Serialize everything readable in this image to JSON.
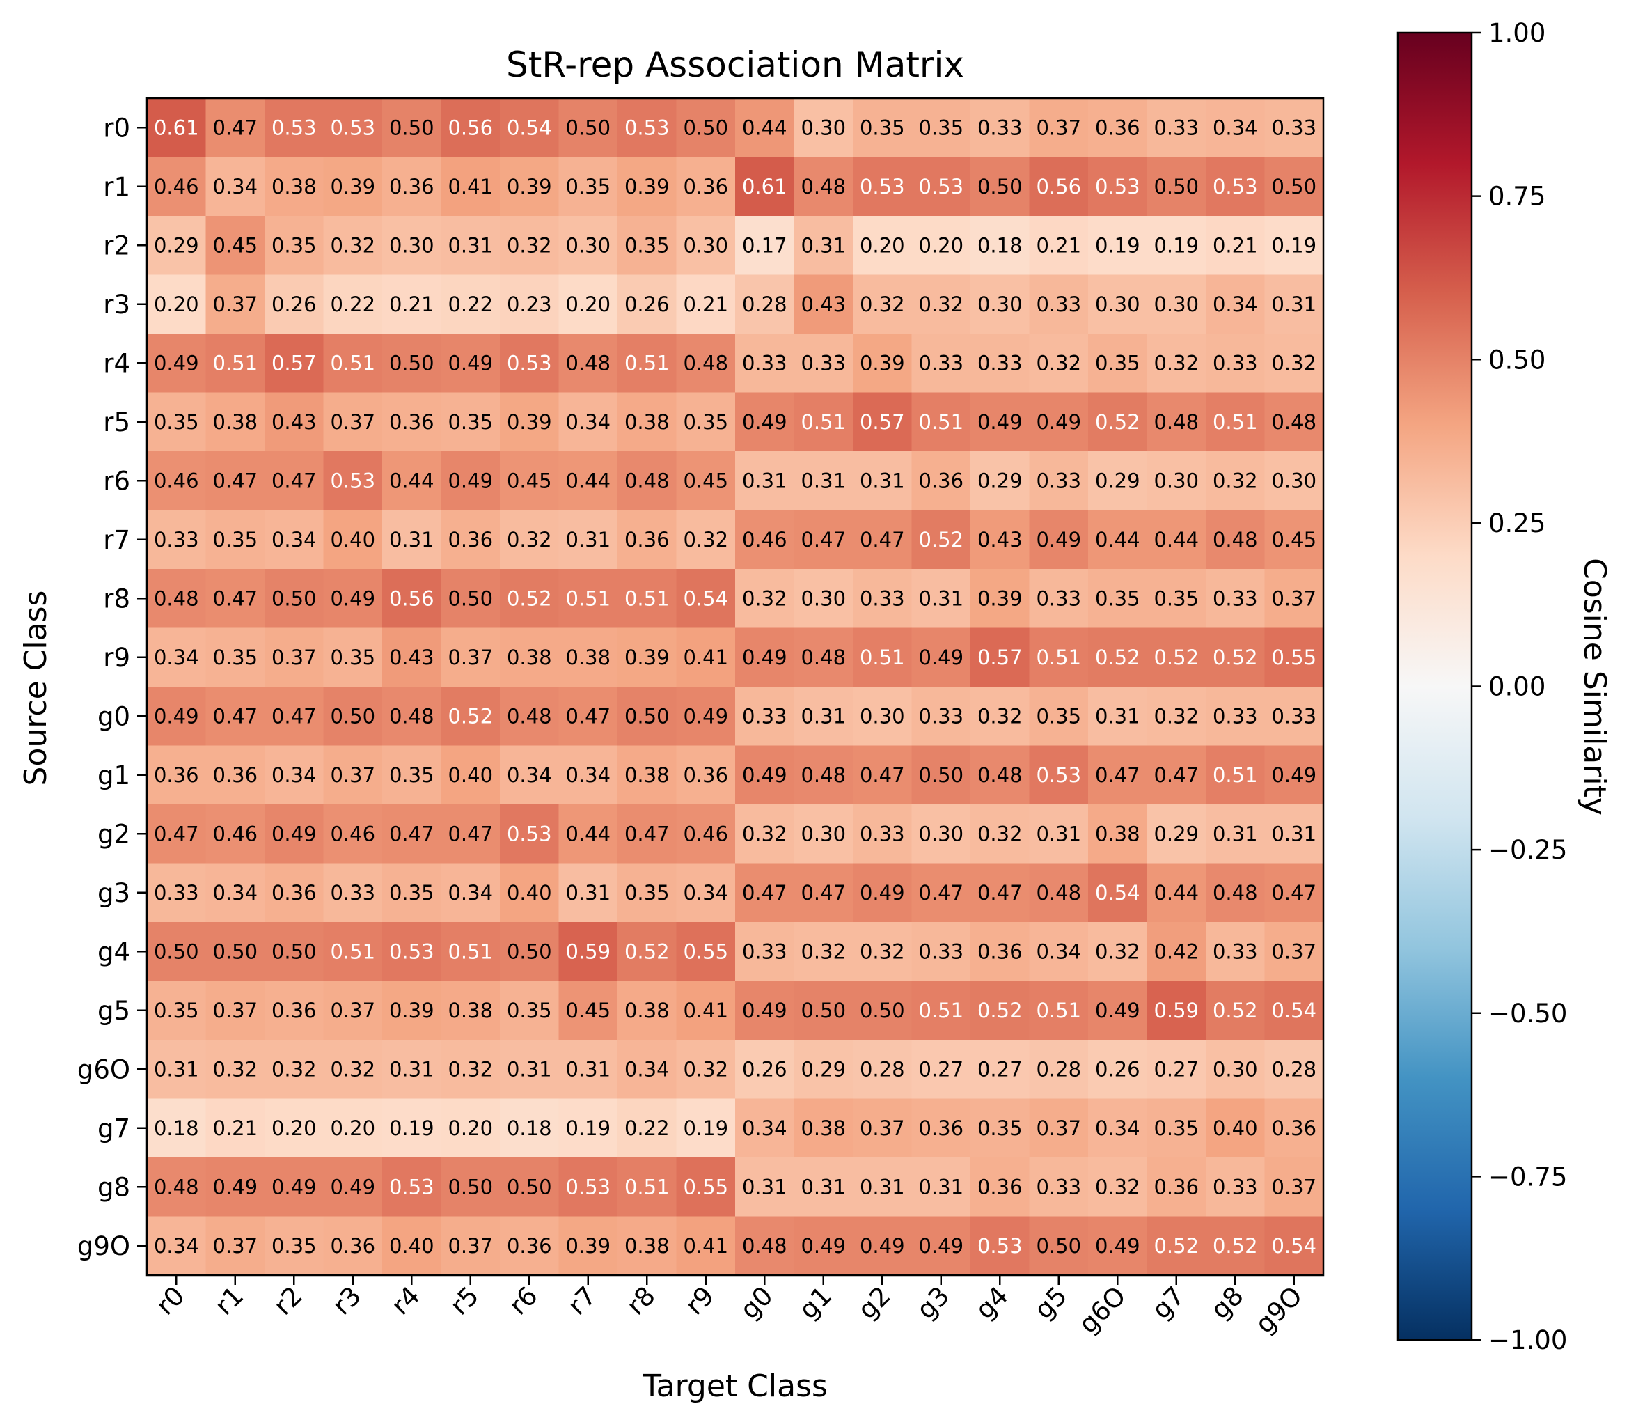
{
  "chart_data": {
    "type": "heatmap",
    "title": "StR-rep Association Matrix",
    "xlabel": "Target Class",
    "ylabel": "Source Class",
    "colorbar_label": "Cosine Similarity",
    "x_categories": [
      "r0",
      "r1",
      "r2",
      "r3",
      "r4",
      "r5",
      "r6",
      "r7",
      "r8",
      "r9",
      "g0",
      "g1",
      "g2",
      "g3",
      "g4",
      "g5",
      "g6O",
      "g7",
      "g8",
      "g9O"
    ],
    "y_categories": [
      "r0",
      "r1",
      "r2",
      "r3",
      "r4",
      "r5",
      "r6",
      "r7",
      "r8",
      "r9",
      "g0",
      "g1",
      "g2",
      "g3",
      "g4",
      "g5",
      "g6O",
      "g7",
      "g8",
      "g9O"
    ],
    "values": [
      [
        0.61,
        0.47,
        0.53,
        0.53,
        0.5,
        0.56,
        0.54,
        0.5,
        0.53,
        0.5,
        0.44,
        0.3,
        0.35,
        0.35,
        0.33,
        0.37,
        0.36,
        0.33,
        0.34,
        0.33
      ],
      [
        0.46,
        0.34,
        0.38,
        0.39,
        0.36,
        0.41,
        0.39,
        0.35,
        0.39,
        0.36,
        0.61,
        0.48,
        0.53,
        0.53,
        0.5,
        0.56,
        0.53,
        0.5,
        0.53,
        0.5
      ],
      [
        0.29,
        0.45,
        0.35,
        0.32,
        0.3,
        0.31,
        0.32,
        0.3,
        0.35,
        0.3,
        0.17,
        0.31,
        0.2,
        0.2,
        0.18,
        0.21,
        0.19,
        0.19,
        0.21,
        0.19
      ],
      [
        0.2,
        0.37,
        0.26,
        0.22,
        0.21,
        0.22,
        0.23,
        0.2,
        0.26,
        0.21,
        0.28,
        0.43,
        0.32,
        0.32,
        0.3,
        0.33,
        0.3,
        0.3,
        0.34,
        0.31
      ],
      [
        0.49,
        0.51,
        0.57,
        0.51,
        0.5,
        0.49,
        0.53,
        0.48,
        0.51,
        0.48,
        0.33,
        0.33,
        0.39,
        0.33,
        0.33,
        0.32,
        0.35,
        0.32,
        0.33,
        0.32
      ],
      [
        0.35,
        0.38,
        0.43,
        0.37,
        0.36,
        0.35,
        0.39,
        0.34,
        0.38,
        0.35,
        0.49,
        0.51,
        0.57,
        0.51,
        0.49,
        0.49,
        0.52,
        0.48,
        0.51,
        0.48
      ],
      [
        0.46,
        0.47,
        0.47,
        0.53,
        0.44,
        0.49,
        0.45,
        0.44,
        0.48,
        0.45,
        0.31,
        0.31,
        0.31,
        0.36,
        0.29,
        0.33,
        0.29,
        0.3,
        0.32,
        0.3
      ],
      [
        0.33,
        0.35,
        0.34,
        0.4,
        0.31,
        0.36,
        0.32,
        0.31,
        0.36,
        0.32,
        0.46,
        0.47,
        0.47,
        0.52,
        0.43,
        0.49,
        0.44,
        0.44,
        0.48,
        0.45
      ],
      [
        0.48,
        0.47,
        0.5,
        0.49,
        0.56,
        0.5,
        0.52,
        0.51,
        0.51,
        0.54,
        0.32,
        0.3,
        0.33,
        0.31,
        0.39,
        0.33,
        0.35,
        0.35,
        0.33,
        0.37
      ],
      [
        0.34,
        0.35,
        0.37,
        0.35,
        0.43,
        0.37,
        0.38,
        0.38,
        0.39,
        0.41,
        0.49,
        0.48,
        0.51,
        0.49,
        0.57,
        0.51,
        0.52,
        0.52,
        0.52,
        0.55
      ],
      [
        0.49,
        0.47,
        0.47,
        0.5,
        0.48,
        0.52,
        0.48,
        0.47,
        0.5,
        0.49,
        0.33,
        0.31,
        0.3,
        0.33,
        0.32,
        0.35,
        0.31,
        0.32,
        0.33,
        0.33
      ],
      [
        0.36,
        0.36,
        0.34,
        0.37,
        0.35,
        0.4,
        0.34,
        0.34,
        0.38,
        0.36,
        0.49,
        0.48,
        0.47,
        0.5,
        0.48,
        0.53,
        0.47,
        0.47,
        0.51,
        0.49
      ],
      [
        0.47,
        0.46,
        0.49,
        0.46,
        0.47,
        0.47,
        0.53,
        0.44,
        0.47,
        0.46,
        0.32,
        0.3,
        0.33,
        0.3,
        0.32,
        0.31,
        0.38,
        0.29,
        0.31,
        0.31
      ],
      [
        0.33,
        0.34,
        0.36,
        0.33,
        0.35,
        0.34,
        0.4,
        0.31,
        0.35,
        0.34,
        0.47,
        0.47,
        0.49,
        0.47,
        0.47,
        0.48,
        0.54,
        0.44,
        0.48,
        0.47
      ],
      [
        0.5,
        0.5,
        0.5,
        0.51,
        0.53,
        0.51,
        0.5,
        0.59,
        0.52,
        0.55,
        0.33,
        0.32,
        0.32,
        0.33,
        0.36,
        0.34,
        0.32,
        0.42,
        0.33,
        0.37
      ],
      [
        0.35,
        0.37,
        0.36,
        0.37,
        0.39,
        0.38,
        0.35,
        0.45,
        0.38,
        0.41,
        0.49,
        0.5,
        0.5,
        0.51,
        0.52,
        0.51,
        0.49,
        0.59,
        0.52,
        0.54
      ],
      [
        0.31,
        0.32,
        0.32,
        0.32,
        0.31,
        0.32,
        0.31,
        0.31,
        0.34,
        0.32,
        0.26,
        0.29,
        0.28,
        0.27,
        0.27,
        0.28,
        0.26,
        0.27,
        0.3,
        0.28
      ],
      [
        0.18,
        0.21,
        0.2,
        0.2,
        0.19,
        0.2,
        0.18,
        0.19,
        0.22,
        0.19,
        0.34,
        0.38,
        0.37,
        0.36,
        0.35,
        0.37,
        0.34,
        0.35,
        0.4,
        0.36
      ],
      [
        0.48,
        0.49,
        0.49,
        0.49,
        0.53,
        0.5,
        0.5,
        0.53,
        0.51,
        0.55,
        0.31,
        0.31,
        0.31,
        0.31,
        0.36,
        0.33,
        0.32,
        0.36,
        0.33,
        0.37
      ],
      [
        0.34,
        0.37,
        0.35,
        0.36,
        0.4,
        0.37,
        0.36,
        0.39,
        0.38,
        0.41,
        0.48,
        0.49,
        0.49,
        0.49,
        0.53,
        0.5,
        0.49,
        0.52,
        0.52,
        0.54
      ]
    ],
    "value_range": [
      -1.0,
      1.0
    ],
    "colorscale": "RdBu_r",
    "colorbar_ticks": [
      "1.00",
      "0.75",
      "0.50",
      "0.25",
      "0.00",
      "−0.25",
      "−0.50",
      "−0.75",
      "−1.00"
    ],
    "colorbar_tick_values": [
      1.0,
      0.75,
      0.5,
      0.25,
      0.0,
      -0.25,
      -0.5,
      -0.75,
      -1.0
    ],
    "cell_labels": true,
    "cell_label_format": "2 decimals",
    "label_light_threshold": 0.5,
    "grid": false,
    "colors": {
      "dark_text": "#000000",
      "light_text": "#ffffff",
      "frame": "#000000"
    }
  }
}
